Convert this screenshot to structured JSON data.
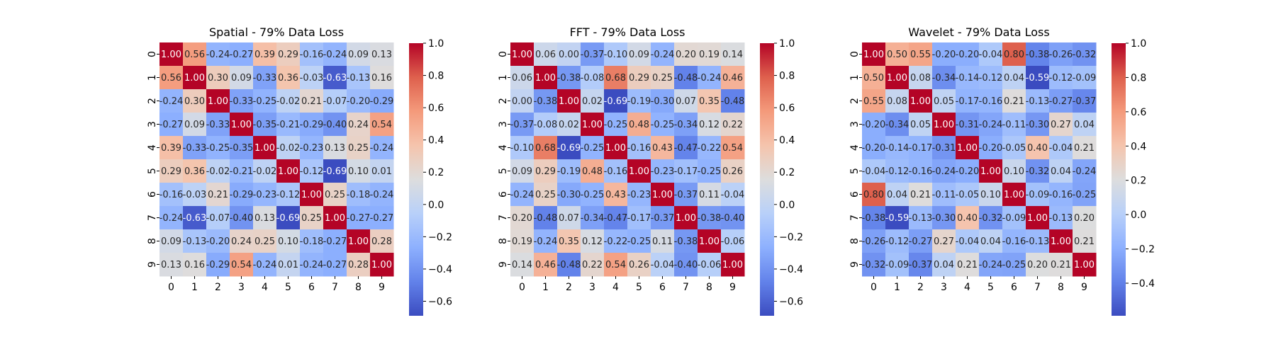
{
  "chart_data": [
    {
      "type": "heatmap",
      "title": "Spatial - 79% Data Loss",
      "labels": [
        "0",
        "1",
        "2",
        "3",
        "4",
        "5",
        "6",
        "7",
        "8",
        "9"
      ],
      "vmin": -0.69,
      "vmax": 1.0,
      "colorbar_ticks": [
        "1.0",
        "0.8",
        "0.6",
        "0.4",
        "0.2",
        "0.0",
        "−0.2",
        "−0.4",
        "−0.6"
      ],
      "colorbar_tick_values": [
        1.0,
        0.8,
        0.6,
        0.4,
        0.2,
        0.0,
        -0.2,
        -0.4,
        -0.6
      ],
      "colormap": "coolwarm",
      "matrix": [
        [
          1.0,
          0.56,
          -0.24,
          -0.27,
          0.39,
          0.29,
          -0.16,
          -0.24,
          0.09,
          0.13
        ],
        [
          0.56,
          1.0,
          0.3,
          0.09,
          -0.33,
          0.36,
          -0.03,
          -0.63,
          -0.13,
          0.16
        ],
        [
          -0.24,
          0.3,
          1.0,
          -0.33,
          -0.25,
          -0.02,
          0.21,
          -0.07,
          -0.2,
          -0.29
        ],
        [
          -0.27,
          0.09,
          -0.33,
          1.0,
          -0.35,
          -0.21,
          -0.29,
          -0.4,
          0.24,
          0.54
        ],
        [
          0.39,
          -0.33,
          -0.25,
          -0.35,
          1.0,
          -0.02,
          -0.23,
          0.13,
          0.25,
          -0.24
        ],
        [
          0.29,
          0.36,
          -0.02,
          -0.21,
          -0.02,
          1.0,
          -0.12,
          -0.69,
          0.1,
          0.01
        ],
        [
          -0.16,
          -0.03,
          0.21,
          -0.29,
          -0.23,
          -0.12,
          1.0,
          0.25,
          -0.18,
          -0.24
        ],
        [
          -0.24,
          -0.63,
          -0.07,
          -0.4,
          0.13,
          -0.69,
          0.25,
          1.0,
          -0.27,
          -0.27
        ],
        [
          0.09,
          -0.13,
          -0.2,
          0.24,
          0.25,
          0.1,
          -0.18,
          -0.27,
          1.0,
          0.28
        ],
        [
          0.13,
          0.16,
          -0.29,
          0.54,
          -0.24,
          0.01,
          -0.24,
          -0.27,
          0.28,
          1.0
        ]
      ]
    },
    {
      "type": "heatmap",
      "title": "FFT - 79% Data Loss",
      "labels": [
        "0",
        "1",
        "2",
        "3",
        "4",
        "5",
        "6",
        "7",
        "8",
        "9"
      ],
      "vmin": -0.69,
      "vmax": 1.0,
      "colorbar_ticks": [
        "1.0",
        "0.8",
        "0.6",
        "0.4",
        "0.2",
        "0.0",
        "−0.2",
        "−0.4",
        "−0.6"
      ],
      "colorbar_tick_values": [
        1.0,
        0.8,
        0.6,
        0.4,
        0.2,
        0.0,
        -0.2,
        -0.4,
        -0.6
      ],
      "colormap": "coolwarm",
      "matrix": [
        [
          1.0,
          0.06,
          0.0,
          -0.37,
          -0.1,
          0.09,
          -0.24,
          0.2,
          0.19,
          0.14
        ],
        [
          0.06,
          1.0,
          -0.38,
          -0.08,
          0.68,
          0.29,
          0.25,
          -0.48,
          -0.24,
          0.46
        ],
        [
          0.0,
          -0.38,
          1.0,
          0.02,
          -0.69,
          -0.19,
          -0.3,
          0.07,
          0.35,
          -0.48
        ],
        [
          -0.37,
          -0.08,
          0.02,
          1.0,
          -0.25,
          0.48,
          -0.25,
          -0.34,
          0.12,
          0.22
        ],
        [
          -0.1,
          0.68,
          -0.69,
          -0.25,
          1.0,
          -0.16,
          0.43,
          -0.47,
          -0.22,
          0.54
        ],
        [
          0.09,
          0.29,
          -0.19,
          0.48,
          -0.16,
          1.0,
          -0.23,
          -0.17,
          -0.25,
          0.26
        ],
        [
          -0.24,
          0.25,
          -0.3,
          -0.25,
          0.43,
          -0.23,
          1.0,
          -0.37,
          0.11,
          -0.04
        ],
        [
          0.2,
          -0.48,
          0.07,
          -0.34,
          -0.47,
          -0.17,
          -0.37,
          1.0,
          -0.38,
          -0.4
        ],
        [
          0.19,
          -0.24,
          0.35,
          0.12,
          -0.22,
          -0.25,
          0.11,
          -0.38,
          1.0,
          -0.06
        ],
        [
          0.14,
          0.46,
          -0.48,
          0.22,
          0.54,
          0.26,
          -0.04,
          -0.4,
          -0.06,
          1.0
        ]
      ]
    },
    {
      "type": "heatmap",
      "title": "Wavelet - 79% Data Loss",
      "labels": [
        "0",
        "1",
        "2",
        "3",
        "4",
        "5",
        "6",
        "7",
        "8",
        "9"
      ],
      "vmin": -0.59,
      "vmax": 1.0,
      "colorbar_ticks": [
        "1.0",
        "0.8",
        "0.6",
        "0.4",
        "0.2",
        "0.0",
        "−0.2",
        "−0.4"
      ],
      "colorbar_tick_values": [
        1.0,
        0.8,
        0.6,
        0.4,
        0.2,
        0.0,
        -0.2,
        -0.4
      ],
      "colormap": "coolwarm",
      "matrix": [
        [
          1.0,
          0.5,
          0.55,
          -0.2,
          -0.2,
          -0.04,
          0.8,
          -0.38,
          -0.26,
          -0.32
        ],
        [
          0.5,
          1.0,
          0.08,
          -0.34,
          -0.14,
          -0.12,
          0.04,
          -0.59,
          -0.12,
          -0.09
        ],
        [
          0.55,
          0.08,
          1.0,
          0.05,
          -0.17,
          -0.16,
          0.21,
          -0.13,
          -0.27,
          -0.37
        ],
        [
          -0.2,
          -0.34,
          0.05,
          1.0,
          -0.31,
          -0.24,
          -0.11,
          -0.3,
          0.27,
          0.04
        ],
        [
          -0.2,
          -0.14,
          -0.17,
          -0.31,
          1.0,
          -0.2,
          -0.05,
          0.4,
          -0.04,
          0.21
        ],
        [
          -0.04,
          -0.12,
          -0.16,
          -0.24,
          -0.2,
          1.0,
          0.1,
          -0.32,
          0.04,
          -0.24
        ],
        [
          0.8,
          0.04,
          0.21,
          -0.11,
          -0.05,
          0.1,
          1.0,
          -0.09,
          -0.16,
          -0.25
        ],
        [
          -0.38,
          -0.59,
          -0.13,
          -0.3,
          0.4,
          -0.32,
          -0.09,
          1.0,
          -0.13,
          0.2
        ],
        [
          -0.26,
          -0.12,
          -0.27,
          0.27,
          -0.04,
          0.04,
          -0.16,
          -0.13,
          1.0,
          0.21
        ],
        [
          -0.32,
          -0.09,
          -0.37,
          0.04,
          0.21,
          -0.24,
          -0.25,
          0.2,
          0.21,
          1.0
        ]
      ]
    }
  ]
}
